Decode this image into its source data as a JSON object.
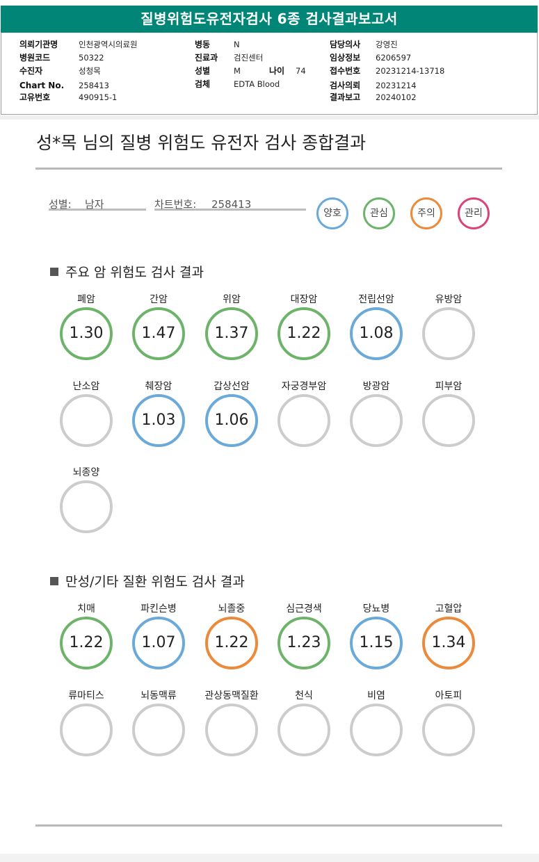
{
  "report": {
    "title": "질병위험도유전자검사 6종 검사결과보고서"
  },
  "patient_info": {
    "institution_label": "의뢰기관명",
    "institution": "인천광역시의료원",
    "hospital_code_label": "병원코드",
    "hospital_code": "50322",
    "patient_label": "수진자",
    "patient": "성청목",
    "chart_label": "Chart No.",
    "chart": "258413",
    "unique_label": "고유번호",
    "unique": "490915-1",
    "ward_label": "병동",
    "ward": "N",
    "dept_label": "진료과",
    "dept": "검진센터",
    "sex_label": "성별",
    "sex": "M",
    "age_label": "나이",
    "age": "74",
    "specimen_label": "검체",
    "specimen": "EDTA Blood",
    "doctor_label": "담당의사",
    "doctor": "강영진",
    "clinical_label": "임상정보",
    "clinical": "6206597",
    "receipt_label": "접수번호",
    "receipt": "20231214-13718",
    "request_label": "검사의뢰",
    "request": "20231214",
    "result_label": "결과보고",
    "result": "20240102"
  },
  "summary": {
    "title": "성*목 님의 질병 위험도 유전자 검사 종합결과",
    "sex_label": "성별:",
    "sex_value": "남자",
    "chart_label": "차트번호:",
    "chart_value": "258413"
  },
  "legend": [
    {
      "label": "양호",
      "color": "#6aa9d8"
    },
    {
      "label": "관심",
      "color": "#6db36a"
    },
    {
      "label": "주의",
      "color": "#ea8a3a"
    },
    {
      "label": "관리",
      "color": "#d8457a"
    }
  ],
  "colors": {
    "good": "#6aa9d8",
    "interest": "#6db36a",
    "caution": "#ea8a3a",
    "none": "#cccccc"
  },
  "sections": [
    {
      "title": "주요 암 위험도 검사 결과",
      "items": [
        {
          "name": "폐암",
          "value": "1.30",
          "status": "interest"
        },
        {
          "name": "간암",
          "value": "1.47",
          "status": "interest"
        },
        {
          "name": "위암",
          "value": "1.37",
          "status": "interest"
        },
        {
          "name": "대장암",
          "value": "1.22",
          "status": "interest"
        },
        {
          "name": "전립선암",
          "value": "1.08",
          "status": "good"
        },
        {
          "name": "유방암",
          "value": "",
          "status": "none"
        },
        {
          "name": "난소암",
          "value": "",
          "status": "none"
        },
        {
          "name": "췌장암",
          "value": "1.03",
          "status": "good"
        },
        {
          "name": "갑상선암",
          "value": "1.06",
          "status": "good"
        },
        {
          "name": "자궁경부암",
          "value": "",
          "status": "none"
        },
        {
          "name": "방광암",
          "value": "",
          "status": "none"
        },
        {
          "name": "피부암",
          "value": "",
          "status": "none"
        },
        {
          "name": "뇌종양",
          "value": "",
          "status": "none"
        }
      ]
    },
    {
      "title": "만성/기타 질환 위험도 검사 결과",
      "items": [
        {
          "name": "치매",
          "value": "1.22",
          "status": "interest"
        },
        {
          "name": "파킨슨병",
          "value": "1.07",
          "status": "good"
        },
        {
          "name": "뇌졸중",
          "value": "1.22",
          "status": "caution"
        },
        {
          "name": "심근경색",
          "value": "1.23",
          "status": "interest"
        },
        {
          "name": "당뇨병",
          "value": "1.15",
          "status": "good"
        },
        {
          "name": "고혈압",
          "value": "1.34",
          "status": "caution"
        },
        {
          "name": "류마티스",
          "value": "",
          "status": "none"
        },
        {
          "name": "뇌동맥류",
          "value": "",
          "status": "none"
        },
        {
          "name": "관상동맥질환",
          "value": "",
          "status": "none"
        },
        {
          "name": "천식",
          "value": "",
          "status": "none"
        },
        {
          "name": "비염",
          "value": "",
          "status": "none"
        },
        {
          "name": "아토피",
          "value": "",
          "status": "none"
        }
      ]
    }
  ]
}
